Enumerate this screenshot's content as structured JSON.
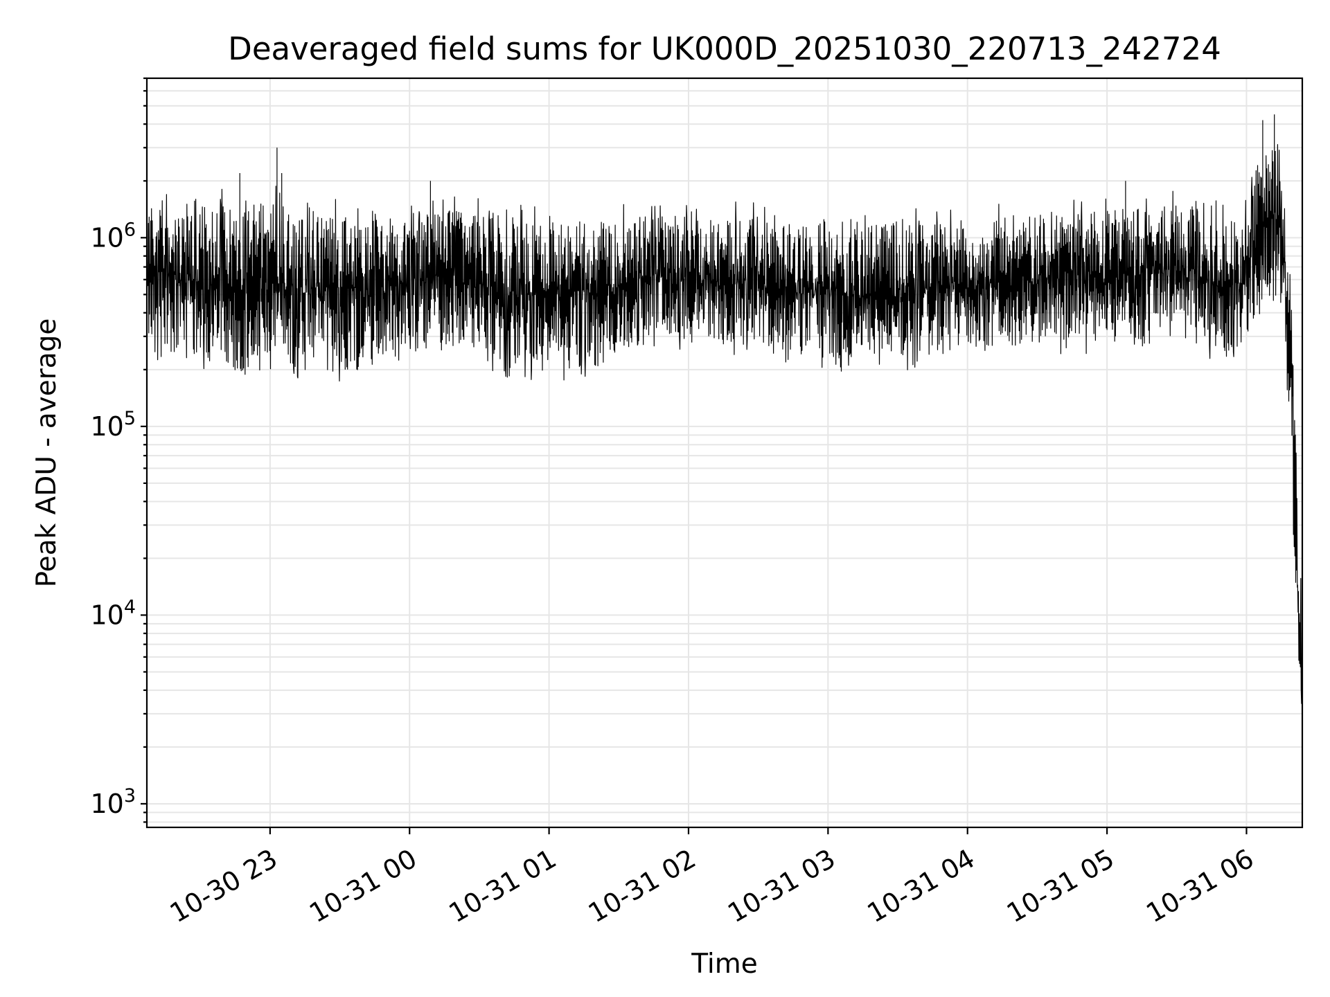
{
  "chart_data": {
    "type": "line",
    "title": "Deaveraged field sums for UK000D_20251030_220713_242724",
    "xlabel": "Time",
    "ylabel": "Peak ADU - average",
    "yscale": "log",
    "xlim": [
      "2025-10-30 22:07",
      "2025-10-31 06:24"
    ],
    "ylim": [
      750,
      7000000
    ],
    "grid": true,
    "x_ticks": [
      {
        "value": "2025-10-30 23:00",
        "label": "10-30 23"
      },
      {
        "value": "2025-10-31 00:00",
        "label": "10-31 00"
      },
      {
        "value": "2025-10-31 01:00",
        "label": "10-31 01"
      },
      {
        "value": "2025-10-31 02:00",
        "label": "10-31 02"
      },
      {
        "value": "2025-10-31 03:00",
        "label": "10-31 03"
      },
      {
        "value": "2025-10-31 04:00",
        "label": "10-31 04"
      },
      {
        "value": "2025-10-31 05:00",
        "label": "10-31 05"
      },
      {
        "value": "2025-10-31 06:00",
        "label": "10-31 06"
      }
    ],
    "y_ticks": [
      {
        "value": 1000,
        "base": "10",
        "exp": "3"
      },
      {
        "value": 10000,
        "base": "10",
        "exp": "4"
      },
      {
        "value": 100000,
        "base": "10",
        "exp": "5"
      },
      {
        "value": 1000000,
        "base": "10",
        "exp": "6"
      }
    ],
    "series": [
      {
        "color": "#000000",
        "envelope": [
          {
            "x": "2025-10-30 22:07",
            "low": 250000,
            "high": 1450000
          },
          {
            "x": "2025-10-30 22:20",
            "low": 240000,
            "high": 1550000
          },
          {
            "x": "2025-10-30 22:35",
            "low": 220000,
            "high": 1500000
          },
          {
            "x": "2025-10-30 22:50",
            "low": 190000,
            "high": 1550000
          },
          {
            "x": "2025-10-30 23:00",
            "low": 200000,
            "high": 1600000
          },
          {
            "x": "2025-10-30 23:20",
            "low": 195000,
            "high": 1450000
          },
          {
            "x": "2025-10-30 23:40",
            "low": 200000,
            "high": 1300000
          },
          {
            "x": "2025-10-31 00:00",
            "low": 260000,
            "high": 1350000
          },
          {
            "x": "2025-10-31 00:20",
            "low": 250000,
            "high": 1400000
          },
          {
            "x": "2025-10-31 00:40",
            "low": 200000,
            "high": 1300000
          },
          {
            "x": "2025-10-31 01:00",
            "low": 190000,
            "high": 1250000
          },
          {
            "x": "2025-10-31 01:20",
            "low": 200000,
            "high": 1200000
          },
          {
            "x": "2025-10-31 01:40",
            "low": 290000,
            "high": 1300000
          },
          {
            "x": "2025-10-31 02:00",
            "low": 280000,
            "high": 1300000
          },
          {
            "x": "2025-10-31 02:20",
            "low": 270000,
            "high": 1300000
          },
          {
            "x": "2025-10-31 02:40",
            "low": 250000,
            "high": 1250000
          },
          {
            "x": "2025-10-31 03:00",
            "low": 220000,
            "high": 1250000
          },
          {
            "x": "2025-10-31 03:20",
            "low": 220000,
            "high": 1200000
          },
          {
            "x": "2025-10-31 03:40",
            "low": 230000,
            "high": 1200000
          },
          {
            "x": "2025-10-31 04:00",
            "low": 260000,
            "high": 1250000
          },
          {
            "x": "2025-10-31 04:30",
            "low": 270000,
            "high": 1350000
          },
          {
            "x": "2025-10-31 05:00",
            "low": 280000,
            "high": 1400000
          },
          {
            "x": "2025-10-31 05:30",
            "low": 300000,
            "high": 1500000
          },
          {
            "x": "2025-10-31 05:58",
            "low": 230000,
            "high": 1200000
          },
          {
            "x": "2025-10-31 06:05",
            "low": 450000,
            "high": 2500000
          },
          {
            "x": "2025-10-31 06:15",
            "low": 500000,
            "high": 3500000
          },
          {
            "x": "2025-10-31 06:18",
            "low": 120000,
            "high": 800000
          },
          {
            "x": "2025-10-31 06:20",
            "low": 30000,
            "high": 500000
          },
          {
            "x": "2025-10-31 06:22",
            "low": 6500,
            "high": 30000
          },
          {
            "x": "2025-10-31 06:24",
            "low": 3000,
            "high": 15000
          }
        ],
        "spikes": [
          {
            "x": "2025-10-30 22:47",
            "y": 2200000
          },
          {
            "x": "2025-10-30 23:03",
            "y": 3000000
          },
          {
            "x": "2025-10-30 23:05",
            "y": 2200000
          },
          {
            "x": "2025-10-31 00:09",
            "y": 2000000
          },
          {
            "x": "2025-10-31 05:08",
            "y": 2000000
          },
          {
            "x": "2025-10-31 06:07",
            "y": 4200000
          },
          {
            "x": "2025-10-31 06:12",
            "y": 4500000
          }
        ]
      }
    ]
  }
}
